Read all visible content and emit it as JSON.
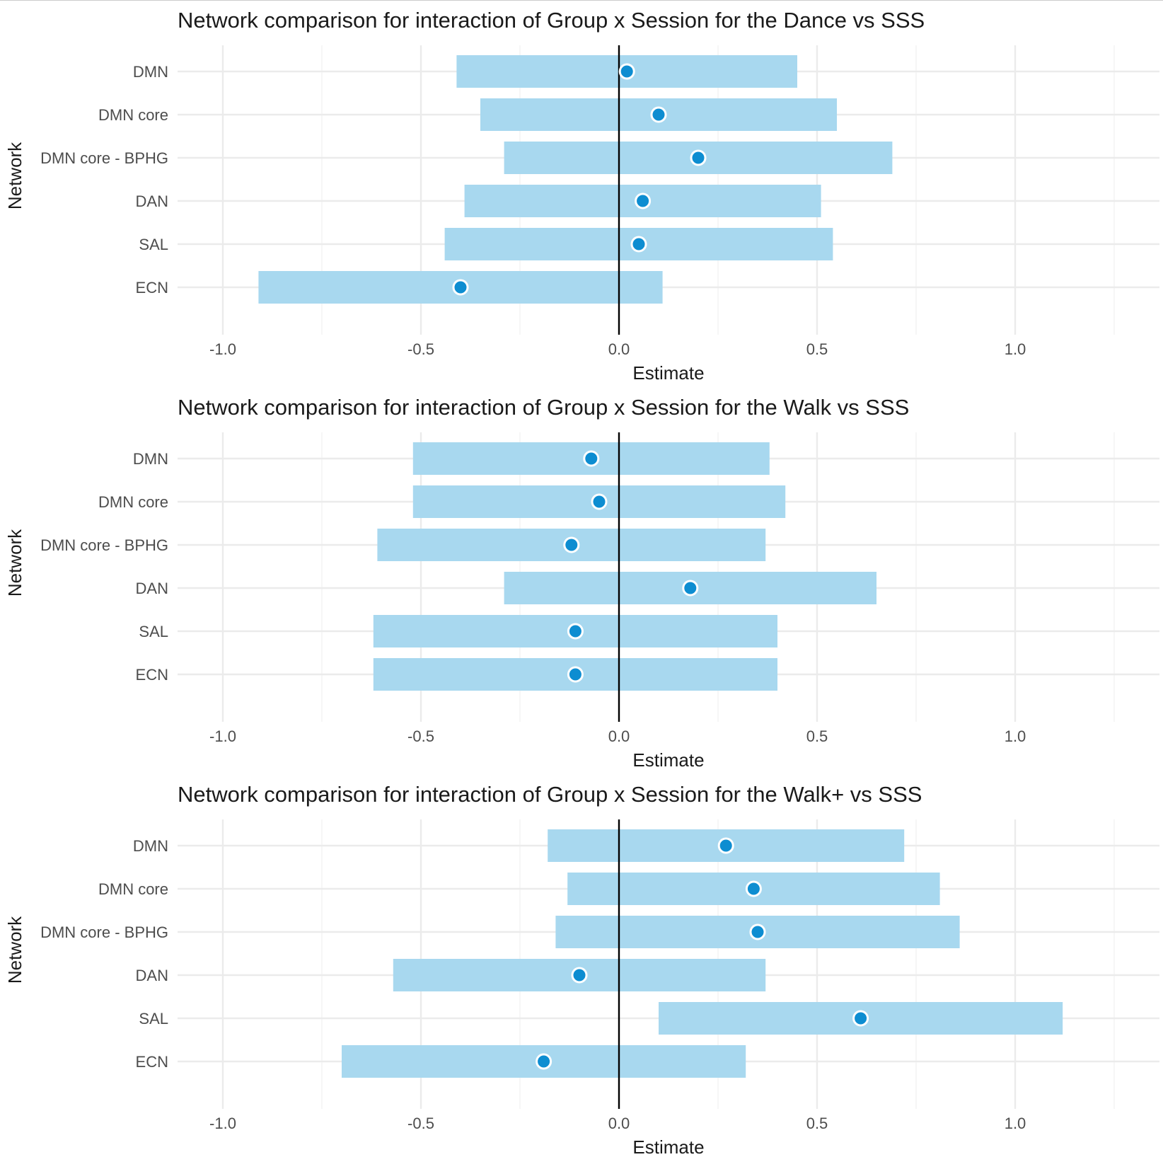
{
  "colors": {
    "bar": "#a8d8ef",
    "point_fill": "#0d8dd1",
    "point_stroke": "#ffffff"
  },
  "chart_data": [
    {
      "type": "bar",
      "title": "Network comparison for interaction of Group x Session for the Dance vs SSS",
      "xlabel": "Estimate",
      "ylabel": "Network",
      "xlim": [
        -1.25,
        1.35
      ],
      "xticks": [
        "-1.0",
        "-0.5",
        "0.0",
        "0.5",
        "1.0"
      ],
      "grid": true,
      "categories": [
        "DMN ",
        "DMN core",
        "DMN core - BPHG",
        "DAN",
        "SAL",
        "ECN"
      ],
      "series": [
        {
          "name": "",
          "lower": [
            -0.41,
            -0.35,
            -0.29,
            -0.39,
            -0.44,
            -0.91
          ],
          "upper": [
            0.45,
            0.55,
            0.69,
            0.51,
            0.54,
            0.11
          ],
          "estimate": [
            0.02,
            0.1,
            0.2,
            0.06,
            0.05,
            -0.4
          ]
        }
      ]
    },
    {
      "type": "bar",
      "title": "Network comparison for interaction of Group x Session for the Walk vs SSS",
      "xlabel": "Estimate",
      "ylabel": "Network",
      "xlim": [
        -1.25,
        1.35
      ],
      "xticks": [
        "-1.0",
        "-0.5",
        "0.0",
        "0.5",
        "1.0"
      ],
      "grid": true,
      "categories": [
        "DMN",
        "DMN core",
        "DMN core - BPHG",
        "DAN",
        "SAL",
        "ECN"
      ],
      "series": [
        {
          "name": "",
          "lower": [
            -0.52,
            -0.52,
            -0.61,
            -0.29,
            -0.62,
            -0.62
          ],
          "upper": [
            0.38,
            0.42,
            0.37,
            0.65,
            0.4,
            0.4
          ],
          "estimate": [
            -0.07,
            -0.05,
            -0.12,
            0.18,
            -0.11,
            -0.11
          ]
        }
      ]
    },
    {
      "type": "bar",
      "title": "Network comparison for interaction of Group x Session for the Walk+ vs SSS",
      "xlabel": "Estimate",
      "ylabel": "Network",
      "xlim": [
        -1.25,
        1.35
      ],
      "xticks": [
        "-1.0",
        "-0.5",
        "0.0",
        "0.5",
        "1.0"
      ],
      "grid": true,
      "categories": [
        "DMN",
        "DMN core",
        "DMN core - BPHG",
        "DAN",
        "SAL",
        "ECN"
      ],
      "series": [
        {
          "name": "",
          "lower": [
            -0.18,
            -0.13,
            -0.16,
            -0.57,
            0.1,
            -0.7
          ],
          "upper": [
            0.72,
            0.81,
            0.86,
            0.37,
            1.12,
            0.32
          ],
          "estimate": [
            0.27,
            0.34,
            0.35,
            -0.1,
            0.61,
            -0.19
          ]
        }
      ]
    }
  ]
}
